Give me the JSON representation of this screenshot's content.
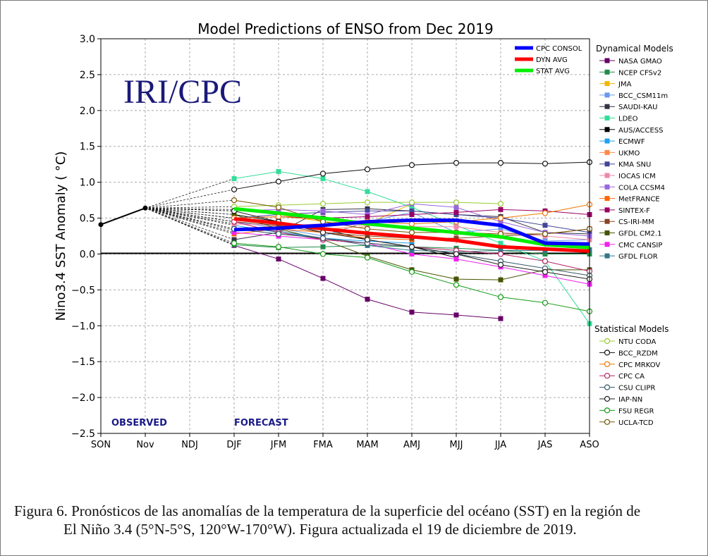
{
  "caption": {
    "line1": "Figura 6. Pronósticos de las anomalías de la temperatura de la superficie del océano (SST) en la región de",
    "line2": "El Niño 3.4 (5°N-5°S, 120°W-170°W). Figura actualizada el 19 de diciembre de 2019."
  },
  "chart_data": {
    "type": "line",
    "title": "Model Predictions of ENSO from Dec 2019",
    "watermark": "IRI/CPC",
    "ylabel": "Nino3.4 SST Anomaly ( °C)",
    "xlabel": "",
    "ylim": [
      -2.5,
      3.0
    ],
    "yticks": [
      3.0,
      2.5,
      2.0,
      1.5,
      1.0,
      0.5,
      0.0,
      -0.5,
      -1.0,
      -1.5,
      -2.0,
      -2.5
    ],
    "ytick_labels": [
      "3.0",
      "2.5",
      "2.0",
      "1.5",
      "1.0",
      "0.5",
      "0.0",
      "−0.5",
      "−1.0",
      "−1.5",
      "−2.0",
      "−2.5"
    ],
    "categories": [
      "SON",
      "Nov",
      "NDJ",
      "DJF",
      "JFM",
      "FMA",
      "MAM",
      "AMJ",
      "MJJ",
      "JJA",
      "JAS",
      "ASO"
    ],
    "grid": true,
    "observed_label": "OBSERVED",
    "forecast_label": "FORECAST",
    "observed": {
      "x": [
        "SON",
        "Nov"
      ],
      "values": [
        0.41,
        0.64
      ],
      "color": "#000000"
    },
    "consensus_legend_position": "top-right",
    "consensus": [
      {
        "name": "CPC CONSOL",
        "color": "#0000ff",
        "values": [
          0.34,
          0.36,
          0.4,
          0.45,
          0.47,
          0.47,
          0.4,
          0.15,
          0.14
        ]
      },
      {
        "name": "DYN AVG",
        "color": "#ff0000",
        "values": [
          0.49,
          0.43,
          0.35,
          0.29,
          0.24,
          0.19,
          0.1,
          0.07,
          0.04
        ]
      },
      {
        "name": "STAT AVG",
        "color": "#00ee00",
        "values": [
          0.63,
          0.57,
          0.5,
          0.42,
          0.36,
          0.3,
          0.24,
          0.13,
          0.09
        ]
      }
    ],
    "legend_groups": [
      "Dynamical Models",
      "Statistical Models"
    ],
    "dynamical": [
      {
        "name": "NASA GMAO",
        "color": "#660066",
        "values": [
          0.12,
          -0.07,
          -0.34,
          -0.63,
          -0.81,
          -0.85,
          -0.9
        ]
      },
      {
        "name": "NCEP CFSv2",
        "color": "#228b4b",
        "values": [
          0.13,
          0.09,
          0.1,
          0.12,
          0.1,
          0.08,
          0.05,
          0.0,
          0.0
        ]
      },
      {
        "name": "JMA",
        "color": "#f2b700",
        "values": [
          0.62,
          0.55,
          0.45,
          0.42,
          0.7
        ]
      },
      {
        "name": "BCC_CSM11m",
        "color": "#6699ee",
        "values": [
          0.45,
          0.36,
          0.25,
          0.45,
          0.58,
          0.3,
          0.35,
          0.18,
          0.2
        ]
      },
      {
        "name": "SAUDI-KAU",
        "color": "#333344",
        "values": [
          0.2,
          0.3,
          0.62,
          0.63,
          0.6,
          0.55,
          0.52,
          0.3,
          0.28
        ]
      },
      {
        "name": "LDEO",
        "color": "#33dd99",
        "values": [
          1.05,
          1.15,
          1.05,
          0.87,
          0.65,
          0.4,
          0.15,
          -0.1,
          -0.97
        ]
      },
      {
        "name": "AUS/ACCESS",
        "color": "#000000",
        "values": [
          0.55,
          0.45,
          0.35,
          0.2,
          0.1,
          -0.05
        ]
      },
      {
        "name": "ECMWF",
        "color": "#22a0ee",
        "values": [
          0.4,
          0.3,
          0.22,
          0.18,
          0.15
        ]
      },
      {
        "name": "UKMO",
        "color": "#ff8844",
        "values": [
          0.33,
          0.4,
          0.35,
          0.38
        ]
      },
      {
        "name": "KMA SNU",
        "color": "#444499",
        "values": [
          0.5,
          0.55,
          0.58,
          0.6,
          0.6,
          0.55,
          0.5,
          0.4,
          0.3
        ]
      },
      {
        "name": "IOCAS ICM",
        "color": "#ee88aa",
        "values": [
          0.42,
          0.4,
          0.42,
          0.4,
          0.38,
          0.38,
          0.3,
          0.25,
          0.2
        ]
      },
      {
        "name": "COLA CCSM4",
        "color": "#9966dd",
        "values": [
          0.6,
          0.62,
          0.6,
          0.55,
          0.7,
          0.65,
          0.45,
          0.3,
          0.25
        ]
      },
      {
        "name": "MetFRANCE",
        "color": "#ff6600",
        "values": [
          0.28,
          0.35,
          0.3,
          0.22,
          0.2
        ]
      },
      {
        "name": "SINTEX-F",
        "color": "#990066",
        "values": [
          0.5,
          0.52,
          0.5,
          0.52,
          0.55,
          0.58,
          0.62,
          0.6,
          0.55
        ]
      },
      {
        "name": "CS-IRI-MM",
        "color": "#884422",
        "values": [
          0.45,
          0.4,
          0.3,
          0.25,
          0.22,
          0.22,
          0.25,
          0.28,
          0.35
        ]
      },
      {
        "name": "GFDL CM2.1",
        "color": "#445500",
        "values": [
          0.55,
          0.35,
          0.2,
          -0.03,
          -0.22,
          -0.35,
          -0.36,
          -0.22,
          -0.22
        ]
      },
      {
        "name": "CMC CANSIP",
        "color": "#ee22ee",
        "values": [
          0.3,
          0.25,
          0.2,
          0.15,
          0.0,
          -0.07,
          -0.18,
          -0.3,
          -0.42
        ]
      },
      {
        "name": "GFDL FLOR",
        "color": "#337788",
        "values": [
          0.35,
          0.32,
          0.22,
          0.12,
          0.05,
          0.03,
          0.05,
          0.05,
          0.06
        ]
      }
    ],
    "statistical": [
      {
        "name": "NTU CODA",
        "color": "#99cc33",
        "values": [
          0.66,
          0.68,
          0.7,
          0.72,
          0.72,
          0.72,
          0.7
        ]
      },
      {
        "name": "BCC_RZDM",
        "color": "#111111",
        "values": [
          0.9,
          1.01,
          1.12,
          1.18,
          1.24,
          1.27,
          1.27,
          1.26,
          1.28
        ]
      },
      {
        "name": "CPC MRKOV",
        "color": "#ee7700",
        "values": [
          0.5,
          0.52,
          0.48,
          0.45,
          0.42,
          0.45,
          0.5,
          0.57,
          0.69
        ]
      },
      {
        "name": "CPC CA",
        "color": "#bb2266",
        "values": [
          0.45,
          0.3,
          0.2,
          0.15,
          0.1,
          0.05,
          0.0,
          -0.1,
          -0.24
        ]
      },
      {
        "name": "CSU CLIPR",
        "color": "#335566",
        "values": [
          0.35,
          0.28,
          0.22,
          0.15,
          0.1,
          0.0,
          -0.1,
          -0.2,
          -0.3
        ]
      },
      {
        "name": "IAP-NN",
        "color": "#222222",
        "values": [
          0.6,
          0.45,
          0.3,
          0.2,
          0.1,
          0.0,
          -0.15,
          -0.25,
          -0.35
        ]
      },
      {
        "name": "FSU REGR",
        "color": "#119911",
        "values": [
          0.15,
          0.1,
          0.0,
          -0.05,
          -0.25,
          -0.43,
          -0.6,
          -0.68,
          -0.8
        ]
      },
      {
        "name": "UCLA-TCD",
        "color": "#775500",
        "values": [
          0.75,
          0.65,
          0.45,
          0.35,
          0.3,
          0.3,
          0.28,
          0.28,
          0.35
        ]
      }
    ]
  }
}
